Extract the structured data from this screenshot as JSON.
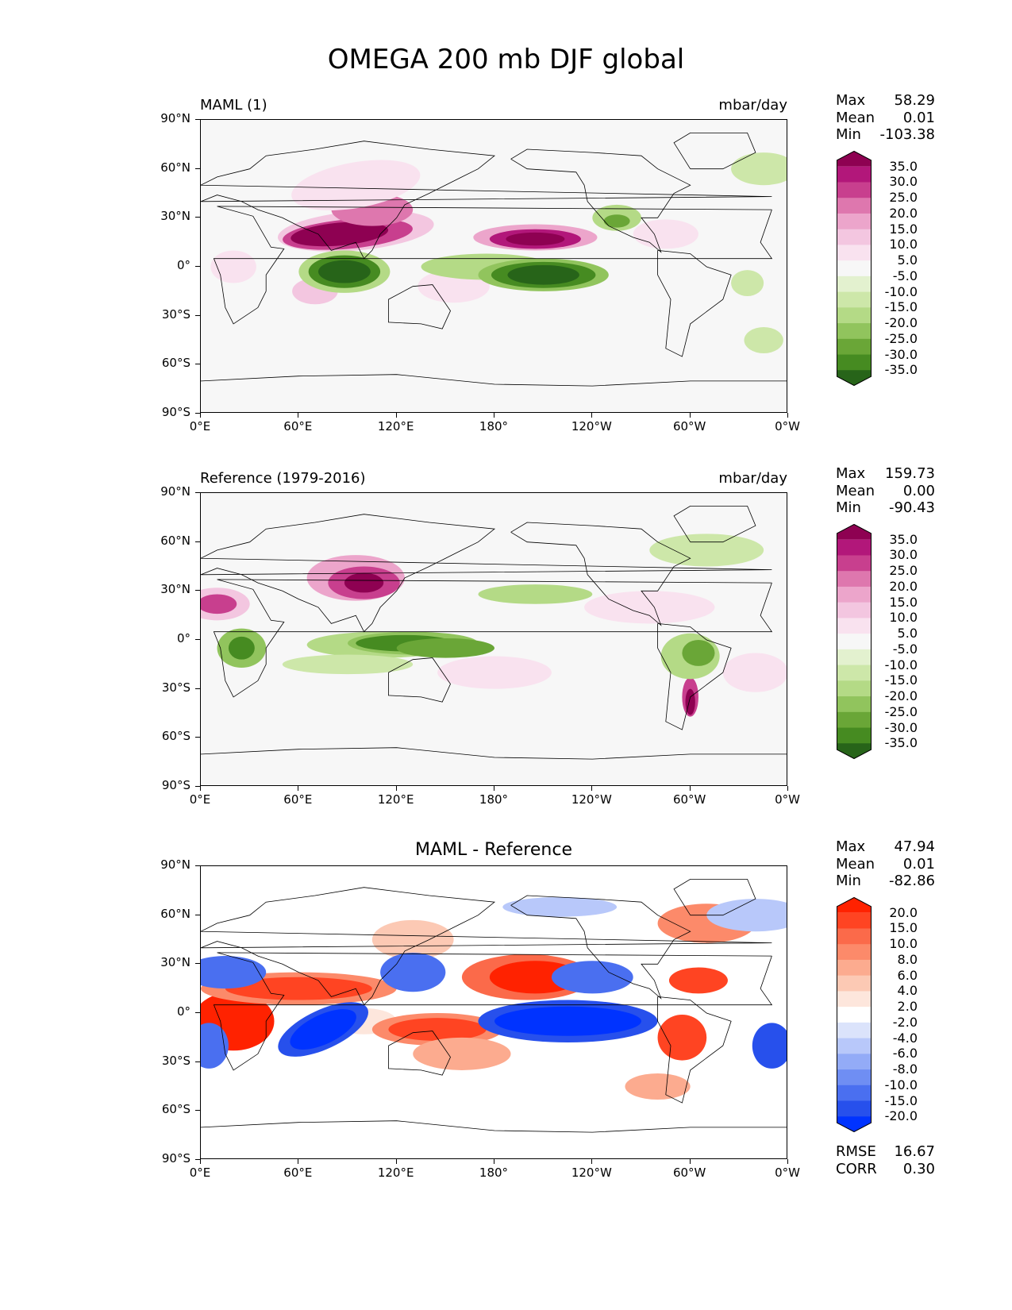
{
  "title": "OMEGA 200 mb DJF global",
  "lat_ticks": [
    "90°N",
    "60°N",
    "30°N",
    "0°",
    "30°S",
    "60°S",
    "90°S"
  ],
  "lon_ticks": [
    "0°E",
    "60°E",
    "120°E",
    "180°",
    "120°W",
    "60°W",
    "0°W"
  ],
  "panels": [
    {
      "id": "test",
      "left_label": "MAML (1)",
      "right_label": "mbar/day",
      "center_title": "",
      "stats": [
        {
          "label": "Max",
          "value": "58.29"
        },
        {
          "label": "Mean",
          "value": "0.01"
        },
        {
          "label": "Min",
          "value": "-103.38"
        }
      ],
      "colorbar": {
        "labels": [
          "35.0",
          "30.0",
          "25.0",
          "20.0",
          "15.0",
          "10.0",
          "5.0",
          "-5.0",
          "-10.0",
          "-15.0",
          "-20.0",
          "-25.0",
          "-30.0",
          "-35.0"
        ],
        "colors": [
          "#8e0152",
          "#b2177a",
          "#c83f8e",
          "#de77ae",
          "#eca5cb",
          "#f3c6e0",
          "#f9e2ef",
          "#f7f7f7",
          "#e3f1cf",
          "#cde7a9",
          "#b4da86",
          "#91c45d",
          "#6aa637",
          "#468b21",
          "#276419"
        ]
      }
    },
    {
      "id": "reference",
      "left_label": "Reference (1979-2016)",
      "right_label": "mbar/day",
      "center_title": "",
      "stats": [
        {
          "label": "Max",
          "value": "159.73"
        },
        {
          "label": "Mean",
          "value": "0.00"
        },
        {
          "label": "Min",
          "value": "-90.43"
        }
      ],
      "colorbar": {
        "labels": [
          "35.0",
          "30.0",
          "25.0",
          "20.0",
          "15.0",
          "10.0",
          "5.0",
          "-5.0",
          "-10.0",
          "-15.0",
          "-20.0",
          "-25.0",
          "-30.0",
          "-35.0"
        ],
        "colors": [
          "#8e0152",
          "#b2177a",
          "#c83f8e",
          "#de77ae",
          "#eca5cb",
          "#f3c6e0",
          "#f9e2ef",
          "#f7f7f7",
          "#e3f1cf",
          "#cde7a9",
          "#b4da86",
          "#91c45d",
          "#6aa637",
          "#468b21",
          "#276419"
        ]
      }
    },
    {
      "id": "difference",
      "left_label": "",
      "right_label": "",
      "center_title": "MAML - Reference",
      "stats": [
        {
          "label": "Max",
          "value": "47.94"
        },
        {
          "label": "Mean",
          "value": "0.01"
        },
        {
          "label": "Min",
          "value": "-82.86"
        }
      ],
      "footer_stats": [
        {
          "label": "RMSE",
          "value": "16.67"
        },
        {
          "label": "CORR",
          "value": "0.30"
        }
      ],
      "colorbar": {
        "labels": [
          "20.0",
          "15.0",
          "10.0",
          "8.0",
          "6.0",
          "4.0",
          "2.0",
          "-2.0",
          "-4.0",
          "-6.0",
          "-8.0",
          "-10.0",
          "-15.0",
          "-20.0"
        ],
        "colors": [
          "#ff2200",
          "#ff4422",
          "#fb6a4a",
          "#fc8a6a",
          "#fcab8f",
          "#fcc9b4",
          "#fde6dc",
          "#ffffff",
          "#dbe3fb",
          "#b8c8fa",
          "#93abf7",
          "#6f8ef3",
          "#4a6ff0",
          "#2750ec",
          "#0033ff"
        ]
      }
    }
  ],
  "colors": {
    "coast": "#000000",
    "pos_strong": "#8e0152",
    "neg_strong": "#276419",
    "diff_pos": "#ff2200",
    "diff_neg": "#0033ff"
  }
}
